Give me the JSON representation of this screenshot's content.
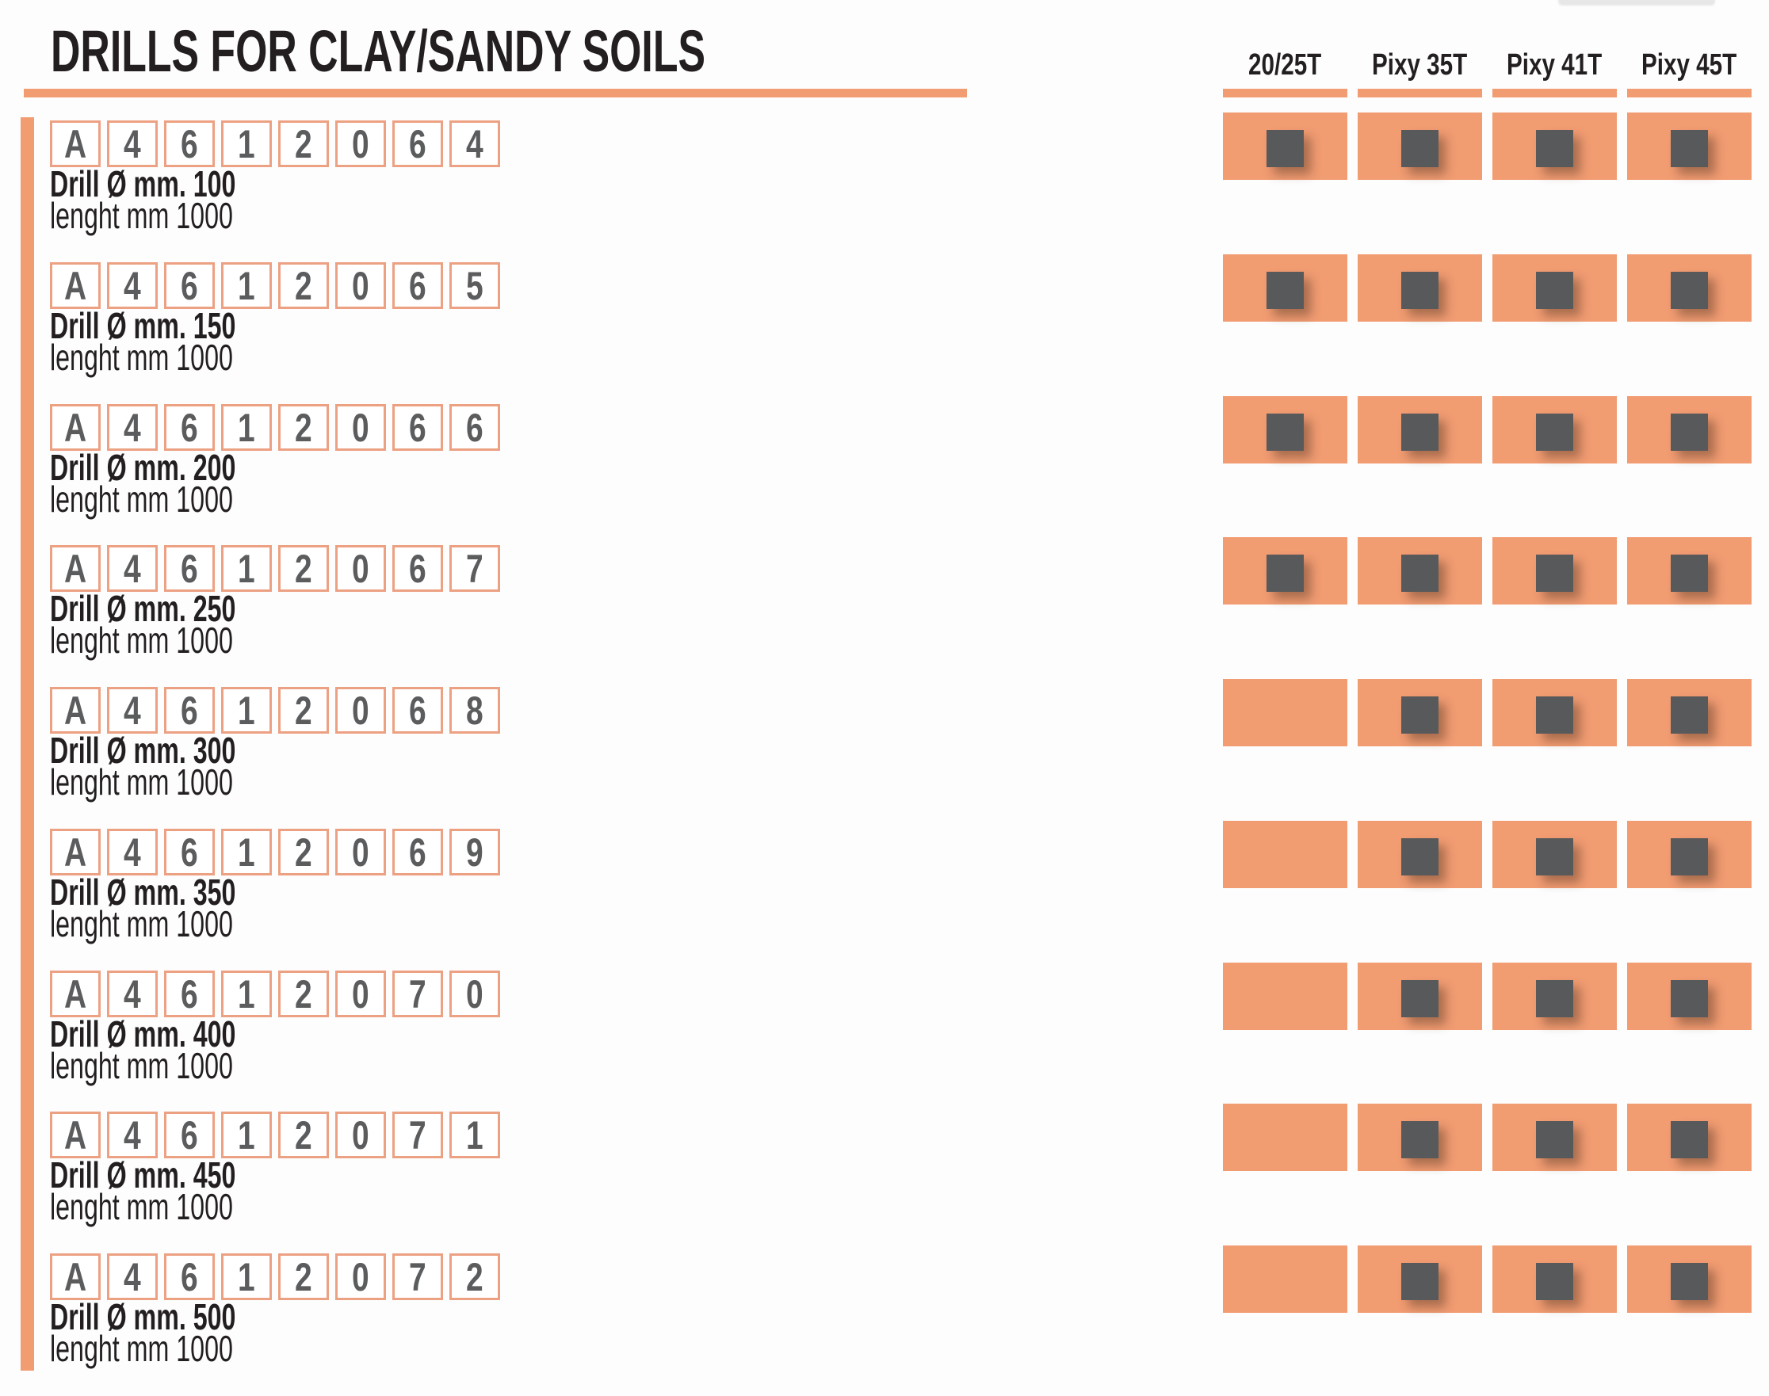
{
  "page": {
    "title": "DRILLS FOR CLAY/SANDY SOILS",
    "colors": {
      "accent_orange": "#F29C72",
      "code_box_border": "#EDA183",
      "marker_gray": "#58595B",
      "digit_gray": "#5B5C5E",
      "text_black": "#231F20"
    }
  },
  "machine_columns": [
    "20/25T",
    "Pixy 35T",
    "Pixy 41T",
    "Pixy 45T"
  ],
  "products": [
    {
      "code": [
        "A",
        "4",
        "6",
        "1",
        "2",
        "0",
        "6",
        "4"
      ],
      "drill_label": "Drill Ø mm. 100",
      "length_label": "lenght mm 1000",
      "available": [
        true,
        true,
        true,
        true
      ]
    },
    {
      "code": [
        "A",
        "4",
        "6",
        "1",
        "2",
        "0",
        "6",
        "5"
      ],
      "drill_label": "Drill Ø mm. 150",
      "length_label": "lenght mm 1000",
      "available": [
        true,
        true,
        true,
        true
      ]
    },
    {
      "code": [
        "A",
        "4",
        "6",
        "1",
        "2",
        "0",
        "6",
        "6"
      ],
      "drill_label": "Drill Ø mm. 200",
      "length_label": "lenght mm 1000",
      "available": [
        true,
        true,
        true,
        true
      ]
    },
    {
      "code": [
        "A",
        "4",
        "6",
        "1",
        "2",
        "0",
        "6",
        "7"
      ],
      "drill_label": "Drill Ø mm. 250",
      "length_label": "lenght mm 1000",
      "available": [
        true,
        true,
        true,
        true
      ]
    },
    {
      "code": [
        "A",
        "4",
        "6",
        "1",
        "2",
        "0",
        "6",
        "8"
      ],
      "drill_label": "Drill Ø mm. 300",
      "length_label": "lenght mm 1000",
      "available": [
        false,
        true,
        true,
        true
      ]
    },
    {
      "code": [
        "A",
        "4",
        "6",
        "1",
        "2",
        "0",
        "6",
        "9"
      ],
      "drill_label": "Drill Ø mm. 350",
      "length_label": "lenght mm 1000",
      "available": [
        false,
        true,
        true,
        true
      ]
    },
    {
      "code": [
        "A",
        "4",
        "6",
        "1",
        "2",
        "0",
        "7",
        "0"
      ],
      "drill_label": "Drill Ø mm. 400",
      "length_label": "lenght mm 1000",
      "available": [
        false,
        true,
        true,
        true
      ]
    },
    {
      "code": [
        "A",
        "4",
        "6",
        "1",
        "2",
        "0",
        "7",
        "1"
      ],
      "drill_label": "Drill Ø mm. 450",
      "length_label": "lenght mm 1000",
      "available": [
        false,
        true,
        true,
        true
      ]
    },
    {
      "code": [
        "A",
        "4",
        "6",
        "1",
        "2",
        "0",
        "7",
        "2"
      ],
      "drill_label": "Drill Ø mm. 500",
      "length_label": "lenght mm 1000",
      "available": [
        false,
        true,
        true,
        true
      ]
    }
  ]
}
